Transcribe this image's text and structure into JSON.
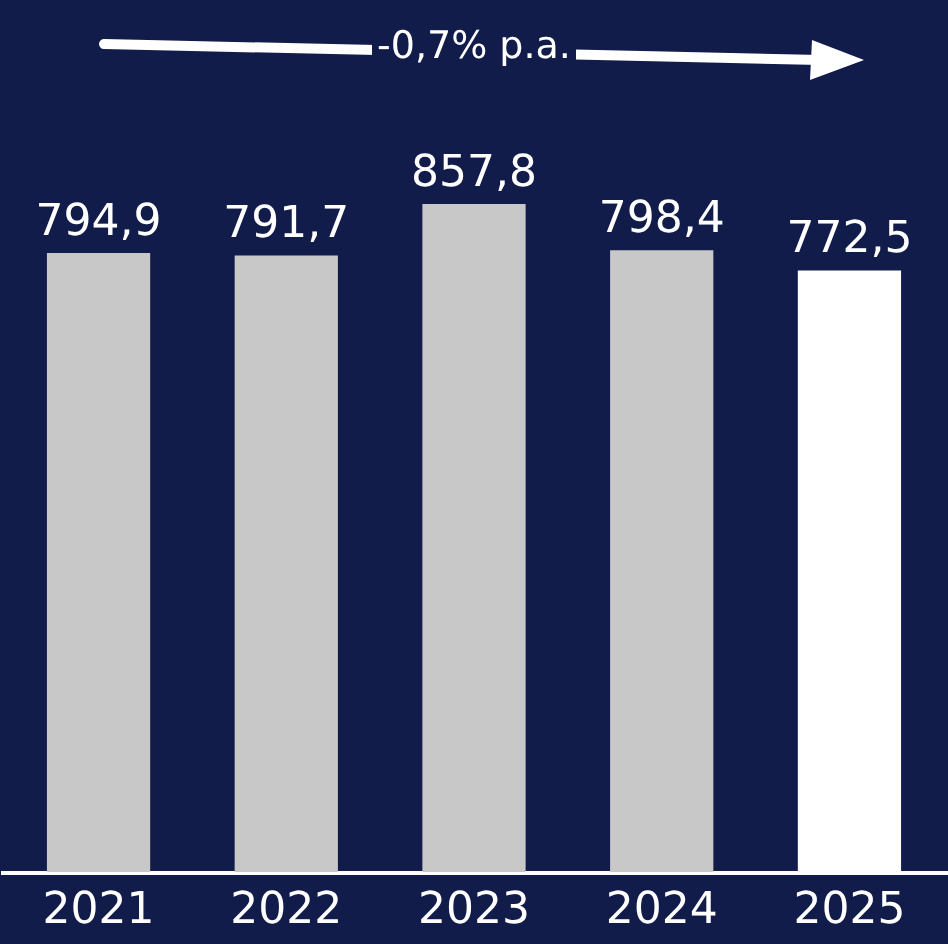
{
  "chart_data": {
    "type": "bar",
    "categories": [
      "2021",
      "2022",
      "2023",
      "2024",
      "2025"
    ],
    "values": [
      794.9,
      791.7,
      857.8,
      798.4,
      772.5
    ],
    "colors": [
      "#c8c8c8",
      "#c8c8c8",
      "#c8c8c8",
      "#c8c8c8",
      "#ffffff"
    ],
    "value_labels": [
      "794,9",
      "791,7",
      "857,8",
      "798,4",
      "772,5"
    ],
    "annotations": [
      "-0,7% p.a."
    ]
  }
}
